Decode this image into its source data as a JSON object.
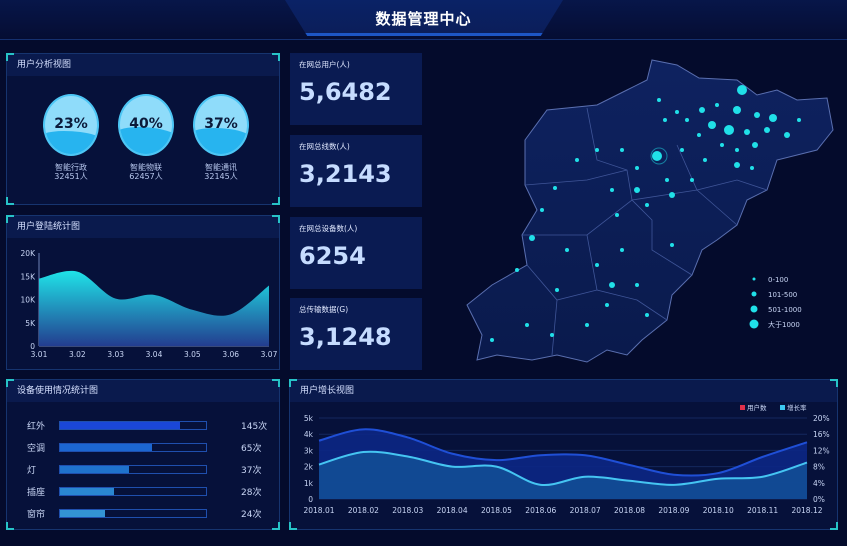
{
  "header": {
    "title": "数据管理中心"
  },
  "user_analysis": {
    "title": "用户分析视图",
    "items": [
      {
        "percent": "23%",
        "name": "智能行政",
        "count": "32451人",
        "level": 0.23
      },
      {
        "percent": "40%",
        "name": "智能物联",
        "count": "62457人",
        "level": 0.4
      },
      {
        "percent": "37%",
        "name": "智能通讯",
        "count": "32145人",
        "level": 0.37
      }
    ]
  },
  "stats": [
    {
      "label": "在网总用户(人)",
      "value": "5,6482"
    },
    {
      "label": "在网总线数(人)",
      "value": "3,2143"
    },
    {
      "label": "在网总设备数(人)",
      "value": "6254"
    },
    {
      "label": "总传输数据(G)",
      "value": "3,1248"
    }
  ],
  "login_chart": {
    "title": "用户登陆统计图"
  },
  "device_usage": {
    "title": "设备使用情况统计图",
    "items": [
      {
        "label": "红外",
        "value": "145次",
        "fill": 0.82,
        "color": "#1a47d8"
      },
      {
        "label": "空调",
        "value": "65次",
        "fill": 0.63,
        "color": "#1c66d0"
      },
      {
        "label": "灯",
        "value": "37次",
        "fill": 0.47,
        "color": "#1f72cc"
      },
      {
        "label": "插座",
        "value": "28次",
        "fill": 0.37,
        "color": "#2a86d0"
      },
      {
        "label": "窗帘",
        "value": "24次",
        "fill": 0.31,
        "color": "#3394d4"
      }
    ]
  },
  "growth_chart": {
    "title": "用户增长视图"
  },
  "map": {
    "legend": [
      {
        "label": "0-100"
      },
      {
        "label": "101-500"
      },
      {
        "label": "501-1000"
      },
      {
        "label": "大于1000"
      }
    ],
    "dot_color": "#20e0e8"
  },
  "chart_data": [
    {
      "type": "area",
      "title": "用户登陆统计图",
      "categories": [
        "3.01",
        "3.02",
        "3.03",
        "3.04",
        "3.05",
        "3.06",
        "3.07"
      ],
      "values": [
        14500,
        16000,
        10200,
        11000,
        7800,
        6800,
        13000
      ],
      "ylim": [
        0,
        20000
      ],
      "yticks": [
        "0",
        "5K",
        "10K",
        "15K",
        "20K"
      ]
    },
    {
      "type": "line",
      "title": "用户增长视图",
      "categories": [
        "2018.01",
        "2018.02",
        "2018.03",
        "2018.04",
        "2018.05",
        "2018.06",
        "2018.07",
        "2018.08",
        "2018.09",
        "2018.10",
        "2018.11",
        "2018.12"
      ],
      "series": [
        {
          "name": "用户数",
          "axis": "left",
          "color": "#e0304a",
          "values": [
            3.6,
            4.3,
            3.8,
            2.8,
            2.4,
            2.7,
            2.7,
            2.1,
            1.5,
            1.6,
            2.6,
            3.5
          ]
        },
        {
          "name": "增长率",
          "axis": "right",
          "color": "#3cc8f0",
          "values": [
            8.5,
            11.6,
            10.5,
            8.0,
            8.0,
            3.5,
            5.5,
            4.5,
            3.5,
            5.0,
            5.5,
            9.0
          ]
        }
      ],
      "ylim_left": [
        0,
        5
      ],
      "yticks_left": [
        "0",
        "1k",
        "2k",
        "3k",
        "4k",
        "5k"
      ],
      "ylim_right": [
        0,
        20
      ],
      "yticks_right": [
        "0%",
        "4%",
        "8%",
        "12%",
        "16%",
        "20%"
      ]
    }
  ]
}
